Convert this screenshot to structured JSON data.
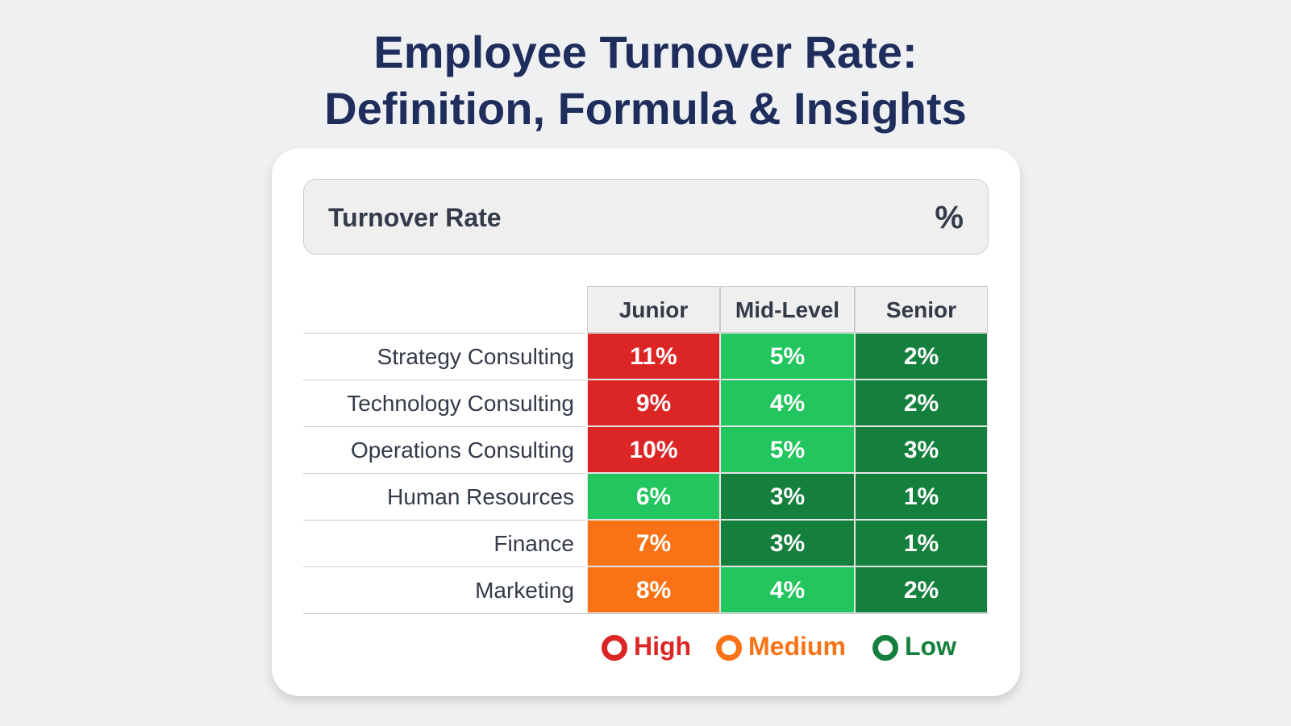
{
  "header": {
    "title_lines": [
      "Employee Turnover Rate:",
      "Definition, Formula & Insights"
    ]
  },
  "metric": {
    "label": "Turnover Rate",
    "unit": "%"
  },
  "table": {
    "columns": [
      "Junior",
      "Mid-Level",
      "Senior"
    ],
    "rows": [
      {
        "label": "Strategy Consulting",
        "cells": [
          {
            "text": "11%",
            "color": "#dc2626"
          },
          {
            "text": "5%",
            "color": "#22c55e"
          },
          {
            "text": "2%",
            "color": "#15803d"
          }
        ]
      },
      {
        "label": "Technology Consulting",
        "cells": [
          {
            "text": "9%",
            "color": "#dc2626"
          },
          {
            "text": "4%",
            "color": "#22c55e"
          },
          {
            "text": "2%",
            "color": "#15803d"
          }
        ]
      },
      {
        "label": "Operations Consulting",
        "cells": [
          {
            "text": "10%",
            "color": "#dc2626"
          },
          {
            "text": "5%",
            "color": "#22c55e"
          },
          {
            "text": "3%",
            "color": "#15803d"
          }
        ]
      },
      {
        "label": "Human Resources",
        "cells": [
          {
            "text": "6%",
            "color": "#22c55e"
          },
          {
            "text": "3%",
            "color": "#15803d"
          },
          {
            "text": "1%",
            "color": "#15803d"
          }
        ]
      },
      {
        "label": "Finance",
        "cells": [
          {
            "text": "7%",
            "color": "#f97316"
          },
          {
            "text": "3%",
            "color": "#15803d"
          },
          {
            "text": "1%",
            "color": "#15803d"
          }
        ]
      },
      {
        "label": "Marketing",
        "cells": [
          {
            "text": "8%",
            "color": "#f97316"
          },
          {
            "text": "4%",
            "color": "#22c55e"
          },
          {
            "text": "2%",
            "color": "#15803d"
          }
        ]
      }
    ]
  },
  "legend": [
    {
      "name": "High",
      "color": "#dc2626"
    },
    {
      "name": "Medium",
      "color": "#f97316"
    },
    {
      "name": "Low",
      "color": "#15803d"
    }
  ]
}
